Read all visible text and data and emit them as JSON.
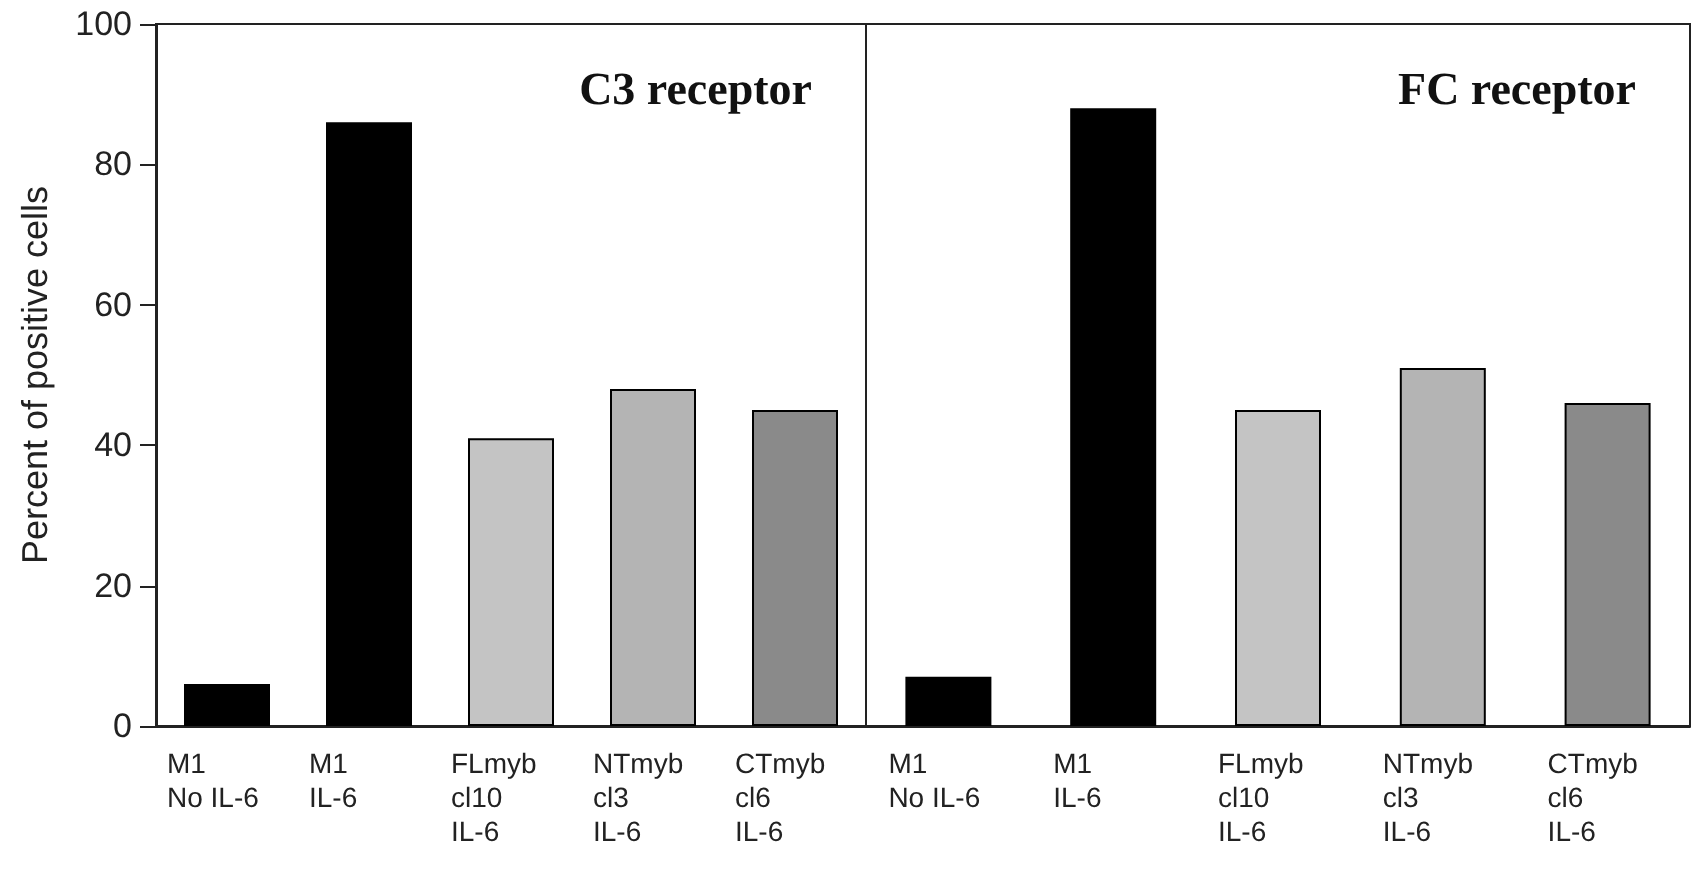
{
  "chart_data": [
    {
      "type": "bar",
      "title": "C3 receptor",
      "ylabel": "Percent of positive cells",
      "categories": [
        "M1\nNo IL-6",
        "M1\nIL-6",
        "FLmyb\ncl10\nIL-6",
        "NTmyb\ncl3\nIL-6",
        "CTmyb\ncl6\nIL-6"
      ],
      "values": [
        6,
        86,
        41,
        48,
        45
      ],
      "colors": [
        "#000000",
        "#000000",
        "#c4c4c4",
        "#b4b4b4",
        "#8a8a8a"
      ],
      "ylim": [
        0,
        100
      ],
      "yticks": [
        0,
        20,
        40,
        60,
        80,
        100
      ]
    },
    {
      "type": "bar",
      "title": "FC receptor",
      "categories": [
        "M1\nNo IL-6",
        "M1\nIL-6",
        "FLmyb\ncl10\nIL-6",
        "NTmyb\ncl3\nIL-6",
        "CTmyb\ncl6\nIL-6"
      ],
      "values": [
        7,
        88,
        45,
        51,
        46
      ],
      "colors": [
        "#000000",
        "#000000",
        "#c4c4c4",
        "#b4b4b4",
        "#8a8a8a"
      ],
      "ylim": [
        0,
        100
      ],
      "yticks": [
        0,
        20,
        40,
        60,
        80,
        100
      ],
      "tick_labels": "x"
    }
  ]
}
